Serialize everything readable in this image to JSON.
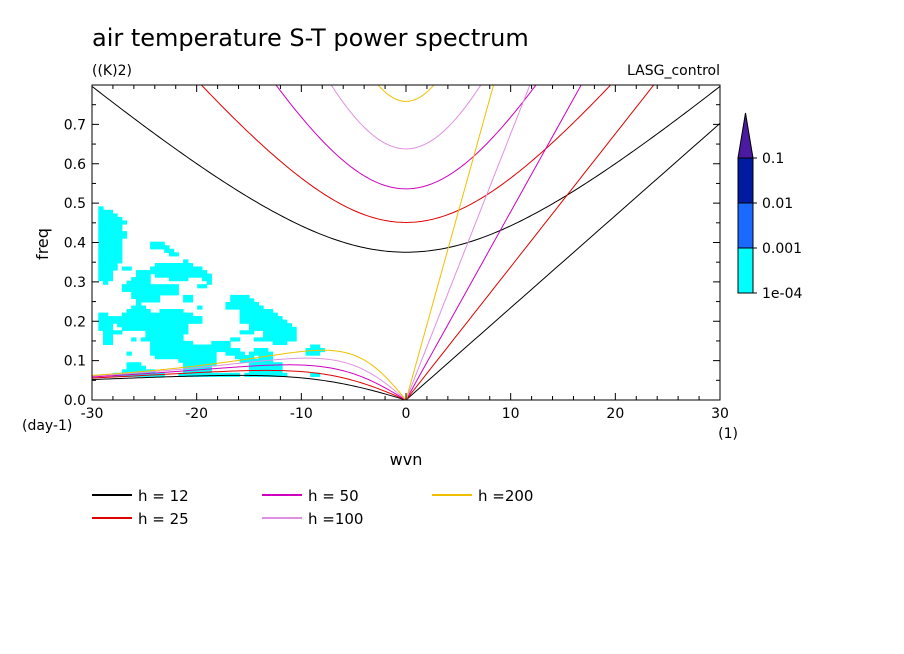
{
  "chart_data": {
    "type": "line",
    "title": "air temperature S-T power spectrum",
    "subtitle_left": "((K)2)",
    "subtitle_right": "LASG_control",
    "xlabel": "wvn",
    "ylabel": "freq",
    "x_unit": "(1)",
    "y_unit": "(day-1)",
    "xlim": [
      -30,
      30
    ],
    "ylim": [
      0,
      0.8
    ],
    "x_ticks": [
      "-30",
      "-20",
      "-10",
      "0",
      "10",
      "20",
      "30"
    ],
    "y_ticks": [
      "0.0",
      "0.1",
      "0.2",
      "0.3",
      "0.4",
      "0.5",
      "0.6",
      "0.7"
    ],
    "x_tick_values": [
      -30,
      -20,
      -10,
      0,
      10,
      20,
      30
    ],
    "y_tick_values": [
      0,
      0.1,
      0.2,
      0.3,
      0.4,
      0.5,
      0.6,
      0.7
    ],
    "series": [
      {
        "name": "h = 12",
        "h": 12,
        "color": "#000000"
      },
      {
        "name": "h = 25",
        "h": 25,
        "color": "#e00000"
      },
      {
        "name": "h = 50",
        "h": 50,
        "color": "#d000c0"
      },
      {
        "name": "h =100",
        "h": 100,
        "color": "#e090e0"
      },
      {
        "name": "h =200",
        "h": 200,
        "color": "#f0c000"
      }
    ],
    "colorbar": {
      "labels": [
        "0.1",
        "0.01",
        "0.001",
        "1e-04"
      ],
      "colors": [
        "#4a1aa0",
        "#001aa0",
        "#1a6aff",
        "#00ffff"
      ]
    },
    "shaded_color": "#00ffff"
  }
}
